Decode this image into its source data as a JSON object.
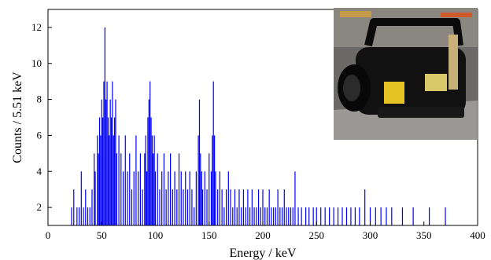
{
  "chart_data": {
    "type": "bar",
    "style": "histogram",
    "title": "",
    "xlabel": "Energy / keV",
    "ylabel": "Counts / 5.51 keV",
    "xlim": [
      0,
      400
    ],
    "ylim": [
      1,
      13
    ],
    "xticks": [
      "0",
      "50",
      "100",
      "150",
      "200",
      "250",
      "300",
      "350",
      "400"
    ],
    "yticks": [
      "2",
      "4",
      "6",
      "8",
      "10",
      "12"
    ],
    "grid": false,
    "legend": "none",
    "color": "#0000ff",
    "inset": "photograph of a black handheld X-ray generator unit",
    "series": [
      {
        "x": [
          22,
          24,
          27,
          29,
          31,
          33,
          35,
          37,
          39,
          41,
          43,
          44,
          46,
          47,
          48,
          49,
          50,
          51,
          52,
          53,
          54,
          55,
          56,
          57,
          58,
          59,
          60,
          61,
          62,
          63,
          64,
          66,
          68,
          70,
          72,
          74,
          76,
          78,
          80,
          82,
          84,
          86,
          88,
          90,
          91,
          92,
          93,
          94,
          95,
          96,
          97,
          98,
          99,
          100,
          102,
          104,
          106,
          108,
          110,
          112,
          114,
          116,
          118,
          120,
          122,
          124,
          126,
          128,
          130,
          132,
          134,
          136,
          138,
          140,
          141,
          142,
          143,
          144,
          146,
          148,
          150,
          152,
          153,
          154,
          155,
          156,
          158,
          160,
          162,
          164,
          166,
          168,
          170,
          172,
          174,
          176,
          178,
          180,
          182,
          184,
          186,
          188,
          190,
          192,
          194,
          196,
          198,
          200,
          202,
          204,
          206,
          208,
          210,
          212,
          214,
          216,
          218,
          220,
          222,
          224,
          226,
          228,
          230,
          233,
          236,
          240,
          243,
          247,
          250,
          254,
          258,
          262,
          266,
          270,
          274,
          278,
          282,
          286,
          290,
          295,
          300,
          305,
          310,
          315,
          320,
          330,
          340,
          355,
          370
        ],
        "values": [
          2,
          3,
          2,
          2,
          4,
          2,
          3,
          2,
          2,
          3,
          5,
          4,
          6,
          5,
          7,
          6,
          8,
          7,
          9,
          12,
          8,
          9,
          7,
          6,
          8,
          7,
          9,
          6,
          7,
          8,
          5,
          6,
          5,
          4,
          6,
          4,
          5,
          3,
          4,
          6,
          4,
          5,
          3,
          5,
          6,
          4,
          7,
          8,
          9,
          7,
          6,
          5,
          6,
          4,
          5,
          3,
          4,
          5,
          3,
          4,
          5,
          3,
          4,
          3,
          5,
          4,
          3,
          4,
          3,
          4,
          3,
          2,
          4,
          6,
          8,
          5,
          4,
          3,
          4,
          3,
          5,
          4,
          6,
          9,
          6,
          4,
          3,
          4,
          3,
          2,
          3,
          4,
          3,
          2,
          3,
          2,
          3,
          2,
          3,
          2,
          3,
          2,
          3,
          2,
          2,
          3,
          2,
          3,
          2,
          2,
          3,
          2,
          2,
          2,
          3,
          2,
          2,
          3,
          2,
          2,
          2,
          2,
          4,
          2,
          2,
          2,
          2,
          2,
          2,
          2,
          2,
          2,
          2,
          2,
          2,
          2,
          2,
          2,
          2,
          3,
          2,
          2,
          2,
          2,
          2,
          2,
          2,
          2,
          2
        ]
      }
    ]
  }
}
